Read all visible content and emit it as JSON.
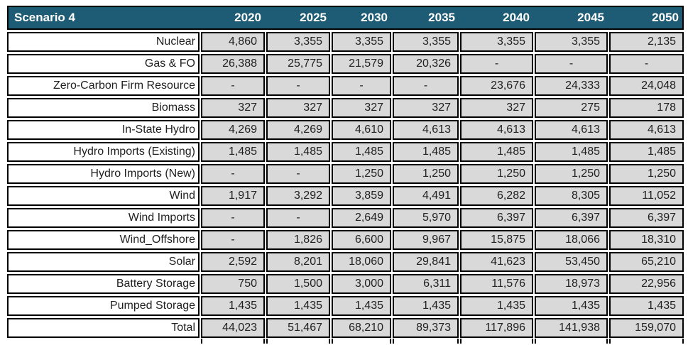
{
  "table": {
    "title": "Scenario 4",
    "columns": [
      "2020",
      "2025",
      "2030",
      "2035",
      "2040",
      "2045",
      "2050"
    ],
    "colors": {
      "header_bg": "#1E5B74",
      "header_text": "#FFFFFF",
      "value_cell_bg": "#D9D9D9",
      "label_cell_bg": "#FFFFFF",
      "border": "#000000",
      "text": "#1F1F1F"
    }
  },
  "chart_data": {
    "type": "table",
    "title": "Scenario 4",
    "categories": [
      "2020",
      "2025",
      "2030",
      "2035",
      "2040",
      "2045",
      "2050"
    ],
    "empty_cell_symbol": "-",
    "series": [
      {
        "name": "Nuclear",
        "values": [
          4860,
          3355,
          3355,
          3355,
          3355,
          3355,
          2135
        ]
      },
      {
        "name": "Gas & FO",
        "values": [
          26388,
          25775,
          21579,
          20326,
          null,
          null,
          null
        ]
      },
      {
        "name": "Zero-Carbon Firm Resource",
        "values": [
          null,
          null,
          null,
          null,
          23676,
          24333,
          24048
        ]
      },
      {
        "name": "Biomass",
        "values": [
          327,
          327,
          327,
          327,
          327,
          275,
          178
        ]
      },
      {
        "name": "In-State Hydro",
        "values": [
          4269,
          4269,
          4610,
          4613,
          4613,
          4613,
          4613
        ]
      },
      {
        "name": "Hydro Imports (Existing)",
        "values": [
          1485,
          1485,
          1485,
          1485,
          1485,
          1485,
          1485
        ]
      },
      {
        "name": "Hydro Imports (New)",
        "values": [
          null,
          null,
          1250,
          1250,
          1250,
          1250,
          1250
        ]
      },
      {
        "name": "Wind",
        "values": [
          1917,
          3292,
          3859,
          4491,
          6282,
          8305,
          11052
        ]
      },
      {
        "name": "Wind Imports",
        "values": [
          null,
          null,
          2649,
          5970,
          6397,
          6397,
          6397
        ]
      },
      {
        "name": "Wind_Offshore",
        "values": [
          null,
          1826,
          6600,
          9967,
          15875,
          18066,
          18310
        ]
      },
      {
        "name": "Solar",
        "values": [
          2592,
          8201,
          18060,
          29841,
          41623,
          53450,
          65210
        ]
      },
      {
        "name": "Battery Storage",
        "values": [
          750,
          1500,
          3000,
          6311,
          11576,
          18973,
          22956
        ]
      },
      {
        "name": "Pumped Storage",
        "values": [
          1435,
          1435,
          1435,
          1435,
          1435,
          1435,
          1435
        ]
      },
      {
        "name": "Total",
        "values": [
          44023,
          51467,
          68210,
          89373,
          117896,
          141938,
          159070
        ]
      }
    ]
  }
}
